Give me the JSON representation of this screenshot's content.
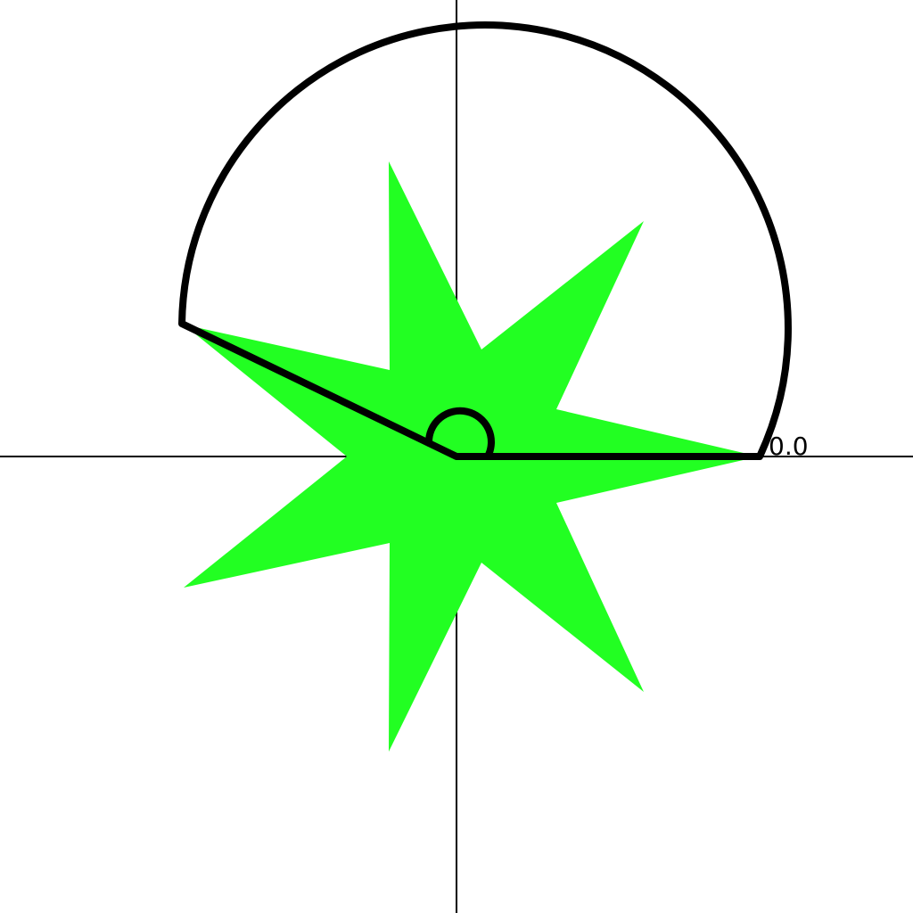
{
  "figure": {
    "angle_readout": "0.0",
    "star_color": "#22ff22",
    "line_color": "#000000",
    "background": "#ffffff",
    "star_points": 7,
    "sector": {
      "start_angle_deg": 0,
      "end_angle_deg": 154
    }
  }
}
